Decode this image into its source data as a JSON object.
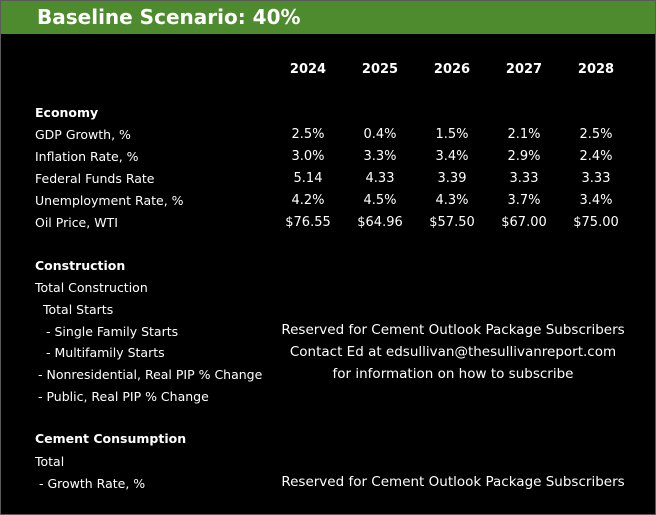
{
  "title": "Baseline Scenario: 40%",
  "years": [
    "2024",
    "2025",
    "2026",
    "2027",
    "2028"
  ],
  "economy": {
    "heading": "Economy",
    "rows": [
      {
        "label": "GDP Growth, %",
        "values": [
          "2.5%",
          "0.4%",
          "1.5%",
          "2.1%",
          "2.5%"
        ]
      },
      {
        "label": "Inflation Rate, %",
        "values": [
          "3.0%",
          "3.3%",
          "3.4%",
          "2.9%",
          "2.4%"
        ]
      },
      {
        "label": "Federal Funds Rate",
        "values": [
          "5.14",
          "4.33",
          "3.39",
          "3.33",
          "3.33"
        ]
      },
      {
        "label": "Unemployment Rate, %",
        "values": [
          "4.2%",
          "4.5%",
          "4.3%",
          "3.7%",
          "3.4%"
        ]
      },
      {
        "label": "Oil Price,  WTI",
        "values": [
          "$76.55",
          "$64.96",
          "$57.50",
          "$67.00",
          "$75.00"
        ]
      }
    ]
  },
  "construction": {
    "heading": "Construction",
    "rows": [
      {
        "label": "Total Construction"
      },
      {
        "label": "Total Starts"
      },
      {
        "label": "- Single Family Starts"
      },
      {
        "label": "- Multifamily Starts"
      },
      {
        "label": "- Nonresidential, Real PIP % Change"
      },
      {
        "label": "- Public, Real PIP % Change"
      }
    ],
    "notice": [
      "Reserved for Cement Outlook Package Subscribers",
      "Contact Ed at edsullivan@thesullivanreport.com",
      "for information on how to subscribe"
    ]
  },
  "cement": {
    "heading": "Cement Consumption",
    "rows": [
      {
        "label": "Total"
      },
      {
        "label": " - Growth Rate, %"
      }
    ],
    "notice": "Reserved for Cement Outlook Package Subscribers"
  },
  "colors": {
    "title_bar": "#4e8b2e",
    "background": "#000000",
    "text": "#ffffff"
  }
}
